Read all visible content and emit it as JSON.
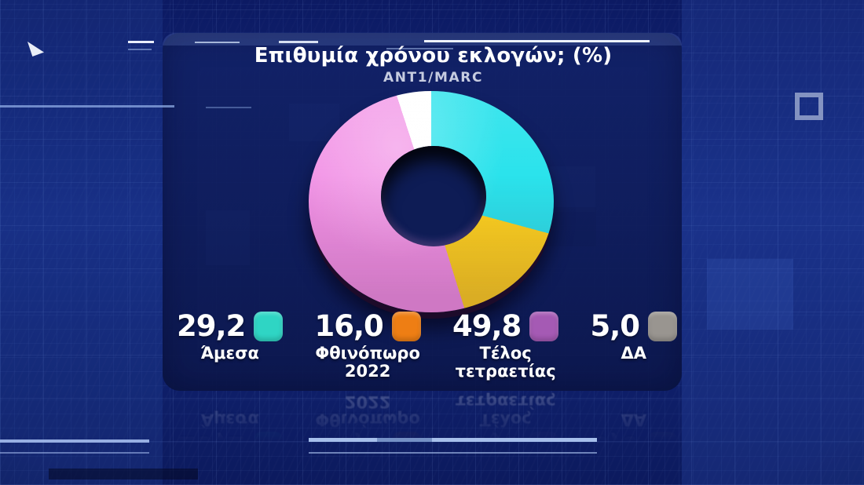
{
  "header": {
    "title": "Επιθυμία χρόνου εκλογών; (%)",
    "source": "ANT1/MARC"
  },
  "chart_data": {
    "type": "pie",
    "donut": true,
    "title": "Επιθυμία χρόνου εκλογών; (%)",
    "subtitle": "ANT1/MARC",
    "start_angle_deg": 0,
    "direction": "clockwise",
    "legend_position": "bottom",
    "categories": [
      "Άμεσα",
      "Φθινόπωρο 2022",
      "Τέλος τετραετίας",
      "ΔΑ"
    ],
    "values": [
      29.2,
      16.0,
      49.8,
      5.0
    ],
    "segments": [
      {
        "label": "Άμεσα",
        "label_lines": [
          "Άμεσα"
        ],
        "value": 29.2,
        "display_value": "29,2",
        "slice_color": "#2be3ec",
        "legend_color": "#2fd5c4"
      },
      {
        "label": "Φθινόπωρο 2022",
        "label_lines": [
          "Φθινόπωρο",
          "2022"
        ],
        "value": 16.0,
        "display_value": "16,0",
        "slice_color": "#ffd41e",
        "legend_color": "#ee7e14"
      },
      {
        "label": "Τέλος τετραετίας",
        "label_lines": [
          "Τέλος",
          "τετραετίας"
        ],
        "value": 49.8,
        "display_value": "49,8",
        "slice_color": "#f292e6",
        "legend_color": "#a55ab4"
      },
      {
        "label": "ΔΑ",
        "label_lines": [
          "ΔΑ"
        ],
        "value": 5.0,
        "display_value": "5,0",
        "slice_color": "#ffffff",
        "legend_color": "#999590"
      }
    ],
    "colors": {
      "background": "#0e1f6e",
      "panel": "#101d57",
      "hole": "#0e1c55",
      "text": "#ffffff",
      "subtitle_text": "#c6cce0"
    }
  }
}
